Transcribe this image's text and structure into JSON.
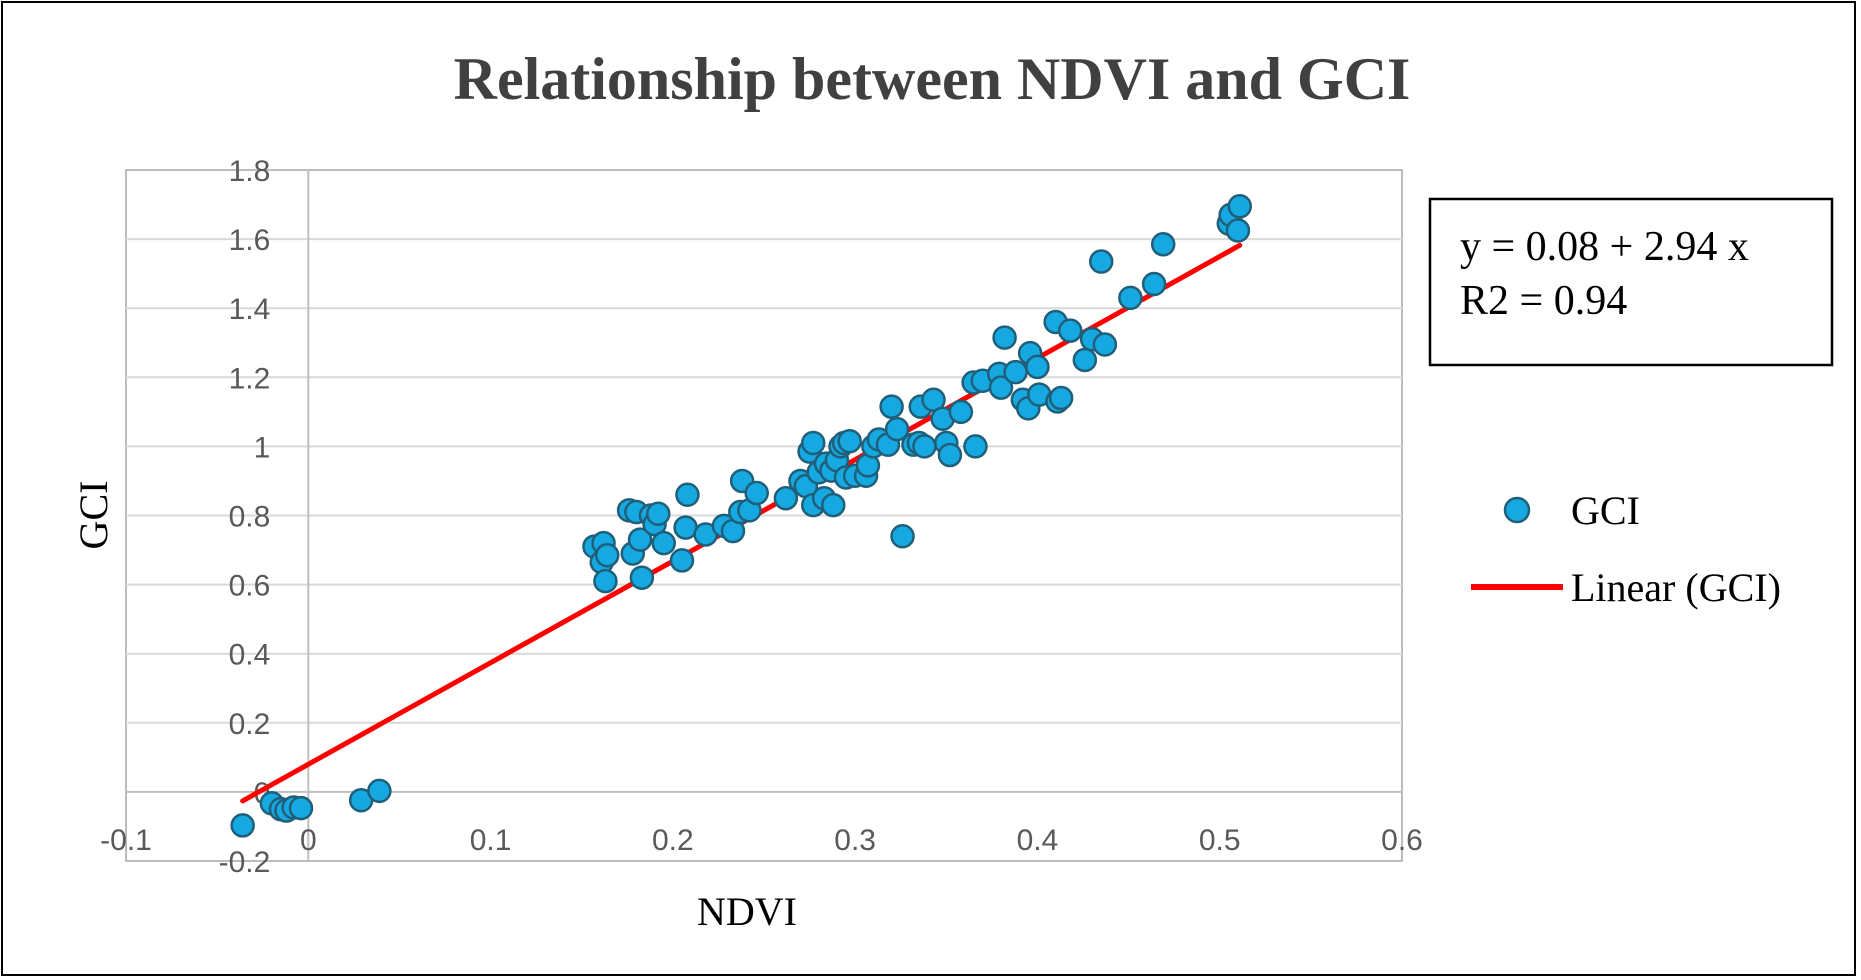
{
  "chart_data": {
    "type": "scatter",
    "title": "Relationship between NDVI and GCI",
    "xlabel": "NDVI",
    "ylabel": "GCI",
    "xlim": [
      -0.1,
      0.6
    ],
    "ylim": [
      -0.2,
      1.8
    ],
    "x_ticks": [
      "-0.1",
      "0",
      "0.1",
      "0.2",
      "0.3",
      "0.4",
      "0.5",
      "0.6"
    ],
    "y_ticks": [
      "-0.2",
      "0",
      "0.2",
      "0.4",
      "0.6",
      "0.8",
      "1",
      "1.2",
      "1.4",
      "1.6",
      "1.8"
    ],
    "grid": "horizontal",
    "legend_position": "right",
    "series": [
      {
        "name": "GCI",
        "type": "scatter",
        "color": "#16A9E1",
        "edge_color": "#1F5F7A",
        "points": [
          [
            -0.036,
            -0.097
          ],
          [
            -0.02,
            -0.033
          ],
          [
            -0.015,
            -0.05
          ],
          [
            -0.012,
            -0.054
          ],
          [
            -0.008,
            -0.045
          ],
          [
            -0.004,
            -0.047
          ],
          [
            0.029,
            -0.024
          ],
          [
            0.039,
            0.003
          ],
          [
            0.157,
            0.71
          ],
          [
            0.162,
            0.72
          ],
          [
            0.161,
            0.665
          ],
          [
            0.164,
            0.685
          ],
          [
            0.163,
            0.61
          ],
          [
            0.176,
            0.815
          ],
          [
            0.178,
            0.69
          ],
          [
            0.18,
            0.81
          ],
          [
            0.182,
            0.73
          ],
          [
            0.183,
            0.62
          ],
          [
            0.188,
            0.8
          ],
          [
            0.19,
            0.775
          ],
          [
            0.192,
            0.805
          ],
          [
            0.195,
            0.72
          ],
          [
            0.205,
            0.67
          ],
          [
            0.207,
            0.765
          ],
          [
            0.208,
            0.86
          ],
          [
            0.218,
            0.745
          ],
          [
            0.228,
            0.77
          ],
          [
            0.233,
            0.755
          ],
          [
            0.237,
            0.81
          ],
          [
            0.238,
            0.9
          ],
          [
            0.242,
            0.815
          ],
          [
            0.246,
            0.865
          ],
          [
            0.262,
            0.85
          ],
          [
            0.27,
            0.9
          ],
          [
            0.273,
            0.885
          ],
          [
            0.275,
            0.985
          ],
          [
            0.277,
            0.83
          ],
          [
            0.277,
            1.01
          ],
          [
            0.28,
            0.925
          ],
          [
            0.283,
            0.85
          ],
          [
            0.284,
            0.95
          ],
          [
            0.287,
            0.93
          ],
          [
            0.288,
            0.83
          ],
          [
            0.29,
            0.96
          ],
          [
            0.292,
            1.0
          ],
          [
            0.294,
            1.01
          ],
          [
            0.295,
            0.91
          ],
          [
            0.297,
            1.015
          ],
          [
            0.3,
            0.915
          ],
          [
            0.306,
            0.915
          ],
          [
            0.307,
            0.945
          ],
          [
            0.31,
            1.0
          ],
          [
            0.313,
            1.02
          ],
          [
            0.318,
            1.005
          ],
          [
            0.32,
            1.115
          ],
          [
            0.323,
            1.05
          ],
          [
            0.326,
            0.74
          ],
          [
            0.332,
            1.005
          ],
          [
            0.335,
            1.01
          ],
          [
            0.336,
            1.115
          ],
          [
            0.338,
            1.0
          ],
          [
            0.343,
            1.135
          ],
          [
            0.348,
            1.08
          ],
          [
            0.35,
            1.01
          ],
          [
            0.352,
            0.975
          ],
          [
            0.358,
            1.1
          ],
          [
            0.365,
            1.185
          ],
          [
            0.366,
            1.0
          ],
          [
            0.37,
            1.19
          ],
          [
            0.379,
            1.21
          ],
          [
            0.38,
            1.17
          ],
          [
            0.382,
            1.315
          ],
          [
            0.388,
            1.215
          ],
          [
            0.392,
            1.135
          ],
          [
            0.395,
            1.11
          ],
          [
            0.396,
            1.27
          ],
          [
            0.4,
            1.23
          ],
          [
            0.401,
            1.15
          ],
          [
            0.41,
            1.36
          ],
          [
            0.411,
            1.13
          ],
          [
            0.413,
            1.14
          ],
          [
            0.418,
            1.335
          ],
          [
            0.426,
            1.25
          ],
          [
            0.43,
            1.31
          ],
          [
            0.435,
            1.535
          ],
          [
            0.437,
            1.295
          ],
          [
            0.451,
            1.43
          ],
          [
            0.464,
            1.47
          ],
          [
            0.469,
            1.585
          ],
          [
            0.505,
            1.645
          ],
          [
            0.506,
            1.67
          ],
          [
            0.51,
            1.625
          ],
          [
            0.511,
            1.695
          ]
        ]
      },
      {
        "name": "Linear (GCI)",
        "type": "line",
        "color": "#FF0000",
        "x": [
          -0.036,
          0.511
        ],
        "y": [
          -0.026,
          1.582
        ]
      }
    ],
    "annotation": {
      "equation": "y = 0.08 + 2.94 x",
      "r2": "R2 = 0.94"
    }
  }
}
